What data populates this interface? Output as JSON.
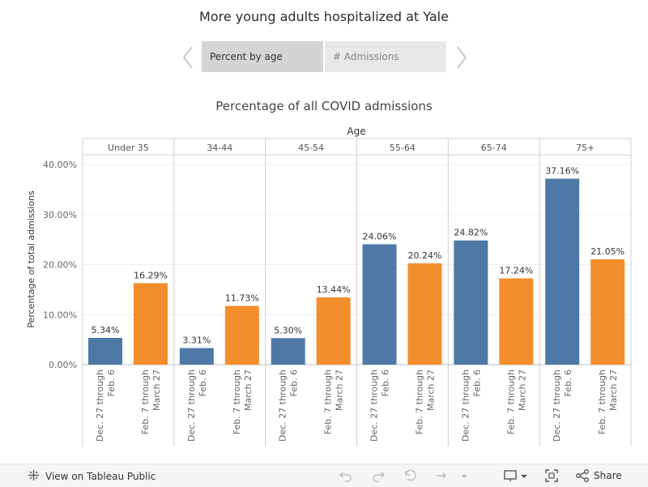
{
  "page": {
    "title": "More young adults hospitalized at Yale"
  },
  "tabs": [
    {
      "label": "Percent by age",
      "selected": true
    },
    {
      "label": "# Admissions",
      "selected": false
    }
  ],
  "footer": {
    "view_label": "View on Tableau Public",
    "share_label": "Share"
  },
  "chart_data": {
    "type": "bar",
    "title": "Percentage of all COVID admissions",
    "column_header": "Age",
    "ylabel": "Percentage of total admissions",
    "ylim": [
      0,
      40
    ],
    "yticks": [
      "0.00%",
      "10.00%",
      "20.00%",
      "30.00%",
      "40.00%"
    ],
    "groups": [
      {
        "name": "Under 35",
        "values": [
          5.34,
          16.29
        ],
        "labels": [
          "5.34%",
          "16.29%"
        ]
      },
      {
        "name": "34-44",
        "values": [
          3.31,
          11.73
        ],
        "labels": [
          "3.31%",
          "11.73%"
        ]
      },
      {
        "name": "45-54",
        "values": [
          5.3,
          13.44
        ],
        "labels": [
          "5.30%",
          "13.44%"
        ]
      },
      {
        "name": "55-64",
        "values": [
          24.06,
          20.24
        ],
        "labels": [
          "24.06%",
          "20.24%"
        ]
      },
      {
        "name": "65-74",
        "values": [
          24.82,
          17.24
        ],
        "labels": [
          "24.82%",
          "17.24%"
        ]
      },
      {
        "name": "75+",
        "values": [
          37.16,
          21.05
        ],
        "labels": [
          "37.16%",
          "21.05%"
        ]
      }
    ],
    "periods": [
      {
        "line1": "Dec. 27 through",
        "line2": "Feb. 6",
        "color": "#4e79a7"
      },
      {
        "line1": "Feb. 7 through",
        "line2": "March 27",
        "color": "#f28e2b"
      }
    ]
  }
}
